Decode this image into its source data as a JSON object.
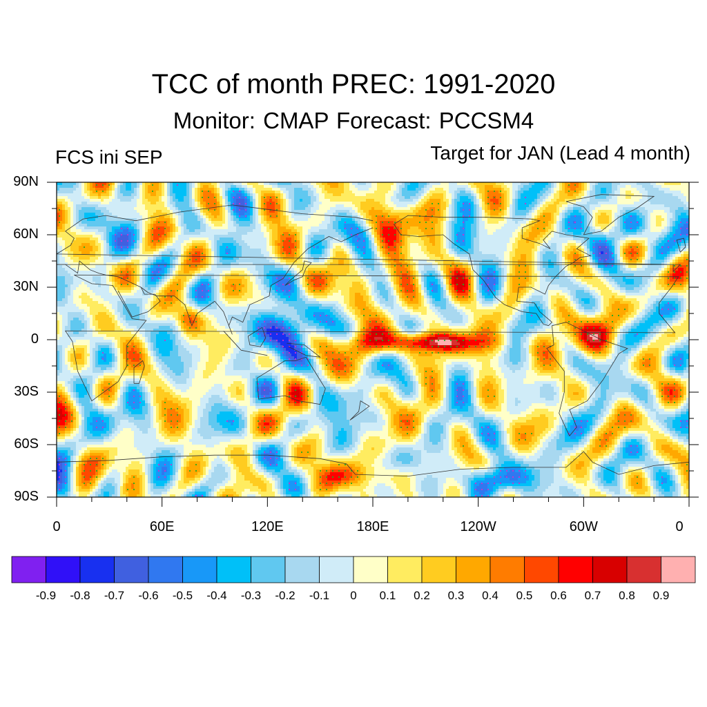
{
  "title": "TCC of month PREC: 1991-2020",
  "subtitle": "Monitor: CMAP   Forecast: PCCSM4",
  "left_label": "FCS ini SEP",
  "right_label": "Target for JAN (Lead 4 month)",
  "map": {
    "lat_labels": [
      "90N",
      "60N",
      "30N",
      "0",
      "30S",
      "60S",
      "90S"
    ],
    "lat_values": [
      90,
      60,
      30,
      0,
      -30,
      -60,
      -90
    ],
    "lon_labels": [
      "0",
      "60E",
      "120E",
      "180E",
      "120W",
      "60W",
      "0"
    ],
    "lon_values": [
      0,
      60,
      120,
      180,
      240,
      300,
      360
    ],
    "significance_dot_color": "#22aa22",
    "negative_dot_color": "#cc33cc"
  },
  "colorbar": {
    "colors": [
      "#8020f0",
      "#3010f8",
      "#1830f0",
      "#4060e0",
      "#3078f0",
      "#1898f8",
      "#00c0f8",
      "#60c8f0",
      "#a8d8f0",
      "#d0ecf8",
      "#ffffc8",
      "#ffec60",
      "#ffcc20",
      "#ffa800",
      "#ff7c00",
      "#ff4800",
      "#ff0000",
      "#d80000",
      "#d83030",
      "#ffb0b0"
    ],
    "labels": [
      "-0.9",
      "-0.8",
      "-0.7",
      "-0.6",
      "-0.5",
      "-0.4",
      "-0.3",
      "-0.2",
      "-0.1",
      "0",
      "0.1",
      "0.2",
      "0.3",
      "0.4",
      "0.5",
      "0.6",
      "0.7",
      "0.8",
      "0.9"
    ]
  }
}
